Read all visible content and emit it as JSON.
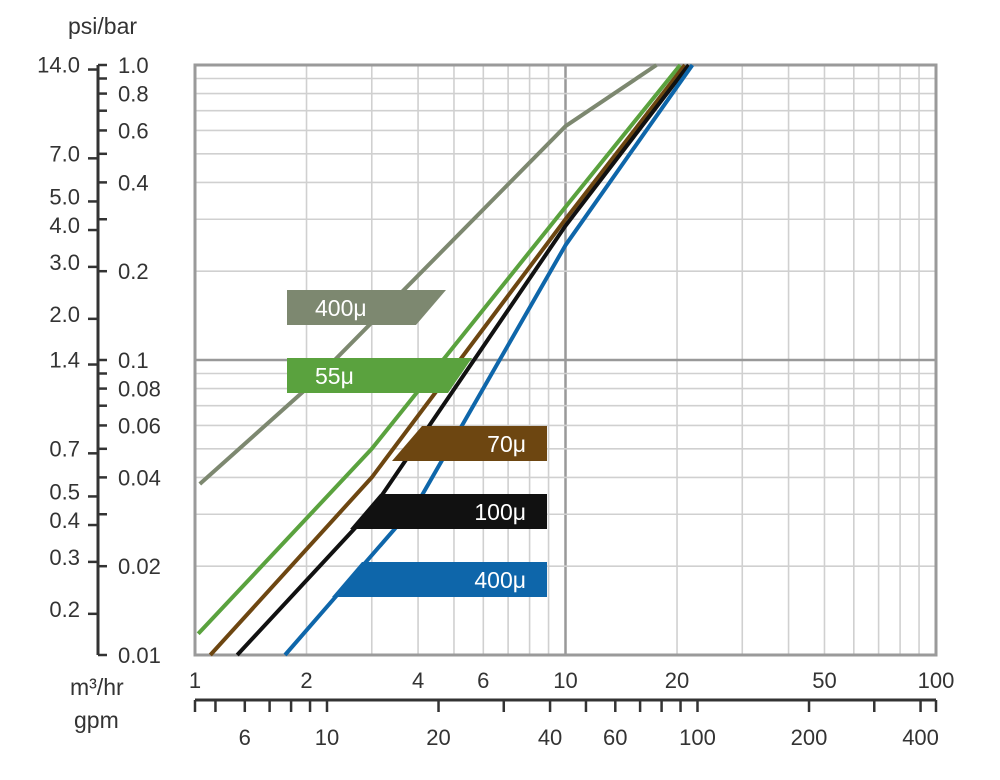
{
  "chart_data": {
    "type": "line",
    "y_unit_label": "psi/bar",
    "x_unit_label_top": "m³/hr",
    "x_unit_label_bottom": "gpm",
    "x_scale": "log",
    "y_scale": "log",
    "xlim": [
      1,
      100
    ],
    "ylim": [
      0.01,
      1.0
    ],
    "y_bar_ticks": [
      "0.01",
      "0.02",
      "0.04",
      "0.06",
      "0.08",
      "0.1",
      "0.2",
      "0.4",
      "0.6",
      "0.8",
      "1.0"
    ],
    "y_psi_ticks": [
      "0.2",
      "0.3",
      "0.4",
      "0.5",
      "0.7",
      "1.4",
      "2.0",
      "3.0",
      "4.0",
      "5.0",
      "7.0",
      "14.0"
    ],
    "x_m3hr_ticks": [
      "1",
      "2",
      "4",
      "6",
      "10",
      "20",
      "50",
      "100"
    ],
    "x_gpm_ticks": [
      "6",
      "10",
      "20",
      "40",
      "60",
      "100",
      "200",
      "400"
    ],
    "grid": true,
    "series": [
      {
        "name": "400μ",
        "color": "#7d8870",
        "points": [
          [
            1.03,
            0.038
          ],
          [
            2,
            0.08
          ],
          [
            10,
            0.62
          ],
          [
            17.6,
            1.0
          ]
        ]
      },
      {
        "name": "55μ",
        "color": "#5aa23e",
        "points": [
          [
            1.02,
            0.0118
          ],
          [
            3,
            0.05
          ],
          [
            10,
            0.33
          ],
          [
            20.4,
            1.0
          ]
        ]
      },
      {
        "name": "70μ",
        "color": "#6d4611",
        "points": [
          [
            1.1,
            0.01
          ],
          [
            3,
            0.04
          ],
          [
            10,
            0.3
          ],
          [
            21,
            1.0
          ]
        ]
      },
      {
        "name": "100μ",
        "color": "#111111",
        "points": [
          [
            1.3,
            0.01
          ],
          [
            3,
            0.031
          ],
          [
            10,
            0.285
          ],
          [
            21.5,
            1.0
          ]
        ]
      },
      {
        "name": "400μ",
        "color": "#0e66aa",
        "points": [
          [
            1.75,
            0.01
          ],
          [
            4,
            0.033
          ],
          [
            10,
            0.245
          ],
          [
            22,
            1.0
          ]
        ]
      }
    ]
  }
}
